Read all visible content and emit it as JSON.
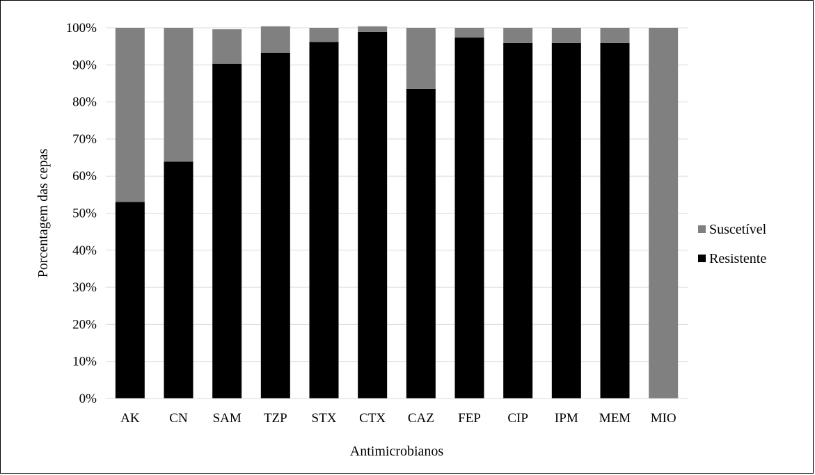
{
  "chart_data": {
    "type": "bar",
    "stacked": true,
    "xlabel": "Antimicrobianos",
    "ylabel": "Porcentagem das cepas",
    "ylim": [
      0,
      100
    ],
    "yticks": [
      "0%",
      "10%",
      "20%",
      "30%",
      "40%",
      "50%",
      "60%",
      "70%",
      "80%",
      "90%",
      "100%"
    ],
    "categories": [
      "AK",
      "CN",
      "SAM",
      "TZP",
      "STX",
      "CTX",
      "CAZ",
      "FEP",
      "CIP",
      "IPM",
      "MEM",
      "MIO"
    ],
    "series": [
      {
        "name": "Resistente",
        "color": "#000000",
        "values": [
          53,
          63.9,
          90.3,
          93.3,
          96.2,
          98.9,
          83.5,
          97.4,
          95.9,
          95.9,
          95.9,
          0
        ]
      },
      {
        "name": "Suscetível",
        "color": "#808080",
        "values": [
          47,
          36.1,
          9.3,
          7.1,
          3.8,
          1.5,
          16.5,
          2.6,
          4.1,
          4.1,
          4.1,
          100
        ]
      }
    ],
    "grid": true,
    "legend_position": "right",
    "legend_order": [
      "Suscetível",
      "Resistente"
    ]
  }
}
